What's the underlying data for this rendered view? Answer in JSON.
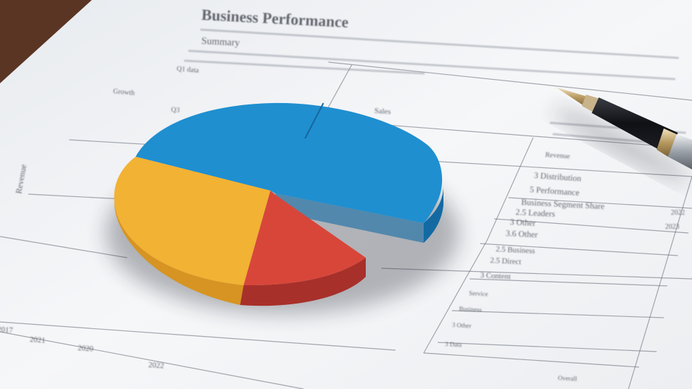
{
  "scene": {
    "description_colors": {
      "desk": "#5a3524",
      "paper": "#f3f4f6",
      "pie_blue": "#1f8fd0",
      "pie_yellow": "#f2b233",
      "pie_red": "#d8463a",
      "pen_body": "#15171c",
      "pen_metal": "#c9b38a"
    }
  },
  "document": {
    "heading": "Business Performance",
    "subheading": "Summary",
    "left_labels": [
      "Q1 data",
      "Growth",
      "Q3"
    ],
    "side_label": "Revenue",
    "column_label": "Sales",
    "table_rows": [
      {
        "label": "Revenue",
        "value": ""
      },
      {
        "label": "3 Distribution",
        "value": ""
      },
      {
        "label": "5 Performance",
        "value": ""
      },
      {
        "label": "Business Segment Share",
        "value": "2022"
      },
      {
        "label": "2.5 Leaders",
        "value": "2023"
      },
      {
        "label": "3 Other",
        "value": ""
      },
      {
        "label": "3.6 Other",
        "value": ""
      },
      {
        "label": "2.5 Business",
        "value": ""
      },
      {
        "label": "2.5 Direct",
        "value": ""
      },
      {
        "label": "3 Content",
        "value": ""
      },
      {
        "label": "Service",
        "value": ""
      },
      {
        "label": "Business",
        "value": ""
      },
      {
        "label": "3 Other",
        "value": ""
      },
      {
        "label": "3 Data",
        "value": ""
      },
      {
        "label": "Overall",
        "value": ""
      }
    ],
    "bottom_numbers": [
      "2017",
      "2021",
      "2020",
      "2022"
    ]
  }
}
